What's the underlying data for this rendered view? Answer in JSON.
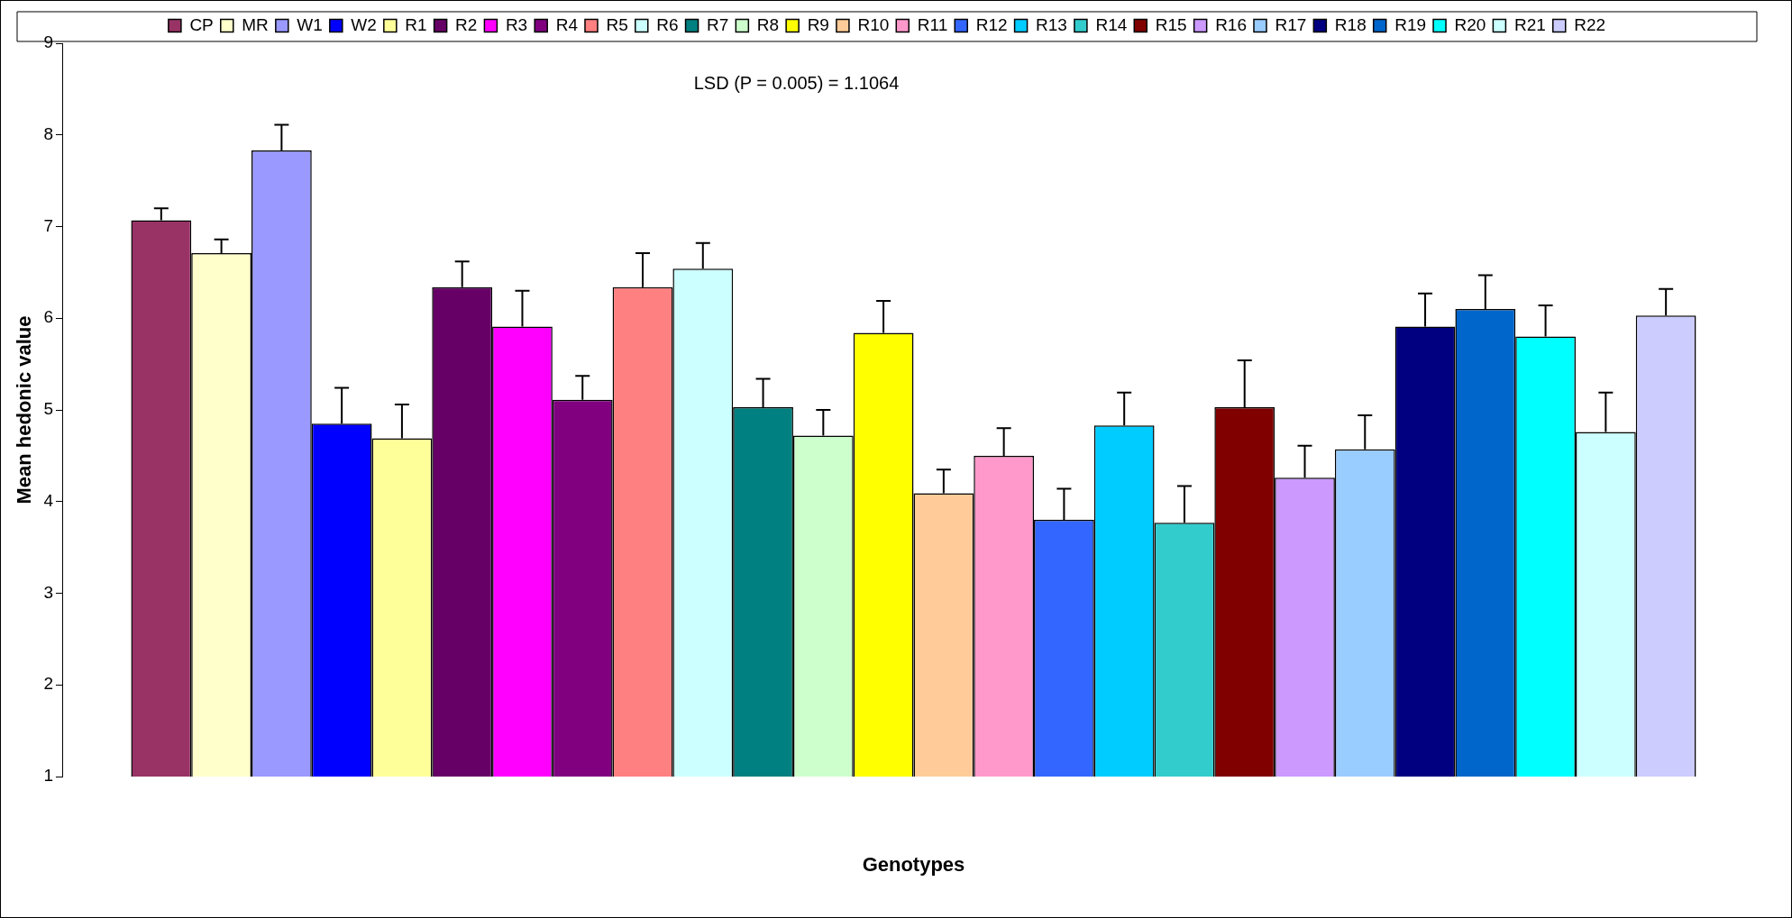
{
  "chart_data": {
    "type": "bar",
    "xlabel": "Genotypes",
    "ylabel": "Mean hedonic value",
    "annotations": [
      "LSD (P = 0.005) = 1.1064"
    ],
    "categories": [
      null
    ],
    "ylim": [
      1,
      9
    ],
    "yticks": [
      1,
      2,
      3,
      4,
      5,
      6,
      7,
      8,
      9
    ],
    "grid": false,
    "legend": "top",
    "series": [
      {
        "name": "CP",
        "color": "#993366",
        "values": [
          7.07
        ],
        "errors": [
          [
            7.07,
            7.2
          ]
        ]
      },
      {
        "name": "MR",
        "color": "#ffffcc",
        "values": [
          6.71
        ],
        "errors": [
          [
            6.71,
            6.86
          ]
        ]
      },
      {
        "name": "W1",
        "color": "#9999ff",
        "values": [
          7.83
        ],
        "errors": [
          [
            7.83,
            8.11
          ]
        ]
      },
      {
        "name": "W2",
        "color": "#0000ff",
        "values": [
          4.85
        ],
        "errors": [
          [
            4.85,
            5.24
          ]
        ]
      },
      {
        "name": "R1",
        "color": "#ffff99",
        "values": [
          4.69
        ],
        "errors": [
          [
            4.69,
            5.06
          ]
        ]
      },
      {
        "name": "R2",
        "color": "#660066",
        "values": [
          6.34
        ],
        "errors": [
          [
            6.34,
            6.62
          ]
        ]
      },
      {
        "name": "R3",
        "color": "#ff00ff",
        "values": [
          5.91
        ],
        "errors": [
          [
            5.91,
            6.3
          ]
        ]
      },
      {
        "name": "R4",
        "color": "#800080",
        "values": [
          5.11
        ],
        "errors": [
          [
            5.11,
            5.37
          ]
        ]
      },
      {
        "name": "R5",
        "color": "#ff8080",
        "values": [
          6.34
        ],
        "errors": [
          [
            6.34,
            6.71
          ]
        ]
      },
      {
        "name": "R6",
        "color": "#ccffff",
        "values": [
          6.54
        ],
        "errors": [
          [
            6.54,
            6.82
          ]
        ]
      },
      {
        "name": "R7",
        "color": "#008080",
        "values": [
          5.03
        ],
        "errors": [
          [
            5.03,
            5.34
          ]
        ]
      },
      {
        "name": "R8",
        "color": "#ccffcc",
        "values": [
          4.72
        ],
        "errors": [
          [
            4.72,
            5.0
          ]
        ]
      },
      {
        "name": "R9",
        "color": "#ffff00",
        "values": [
          5.84
        ],
        "errors": [
          [
            5.84,
            6.19
          ]
        ]
      },
      {
        "name": "R10",
        "color": "#ffcc99",
        "values": [
          4.09
        ],
        "errors": [
          [
            4.09,
            4.35
          ]
        ]
      },
      {
        "name": "R11",
        "color": "#ff99cc",
        "values": [
          4.5
        ],
        "errors": [
          [
            4.5,
            4.8
          ]
        ]
      },
      {
        "name": "R12",
        "color": "#3366ff",
        "values": [
          3.8
        ],
        "errors": [
          [
            3.8,
            4.14
          ]
        ]
      },
      {
        "name": "R13",
        "color": "#00ccff",
        "values": [
          4.83
        ],
        "errors": [
          [
            4.83,
            5.19
          ]
        ]
      },
      {
        "name": "R14",
        "color": "#33cccc",
        "values": [
          3.77
        ],
        "errors": [
          [
            3.77,
            4.17
          ]
        ]
      },
      {
        "name": "R15",
        "color": "#800000",
        "values": [
          5.03
        ],
        "errors": [
          [
            5.03,
            5.54
          ]
        ]
      },
      {
        "name": "R16",
        "color": "#cc99ff",
        "values": [
          4.26
        ],
        "errors": [
          [
            4.26,
            4.61
          ]
        ]
      },
      {
        "name": "R17",
        "color": "#99ccff",
        "values": [
          4.57
        ],
        "errors": [
          [
            4.57,
            4.94
          ]
        ]
      },
      {
        "name": "R18",
        "color": "#000080",
        "values": [
          5.91
        ],
        "errors": [
          [
            5.91,
            6.27
          ]
        ]
      },
      {
        "name": "R19",
        "color": "#0066cc",
        "values": [
          6.1
        ],
        "errors": [
          [
            6.1,
            6.47
          ]
        ]
      },
      {
        "name": "R20",
        "color": "#00ffff",
        "values": [
          5.8
        ],
        "errors": [
          [
            5.8,
            6.14
          ]
        ]
      },
      {
        "name": "R21",
        "color": "#ccffff",
        "values": [
          4.76
        ],
        "errors": [
          [
            4.76,
            5.19
          ]
        ]
      },
      {
        "name": "R22",
        "color": "#ccccff",
        "values": [
          6.03
        ],
        "errors": [
          [
            6.03,
            6.32
          ]
        ]
      }
    ]
  }
}
